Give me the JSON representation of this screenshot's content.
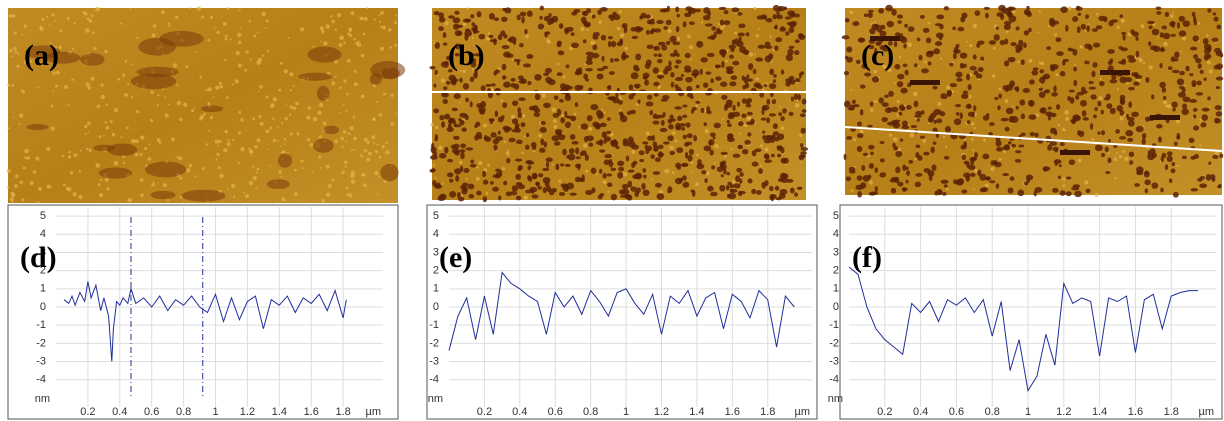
{
  "images": [
    {
      "label": "(a)"
    },
    {
      "label": "(b)"
    },
    {
      "label": "(c)"
    }
  ],
  "chart_data": [
    {
      "type": "line",
      "panel": "(d)",
      "xlabel": "µm",
      "ylabel": "nm",
      "color": "#1f2f9a",
      "grid": true,
      "xlim": [
        0,
        2.05
      ],
      "ylim": [
        -5.5,
        5.5
      ],
      "xticks": [
        0.2,
        0.4,
        0.6,
        0.8,
        1,
        1.2,
        1.4,
        1.6,
        1.8
      ],
      "yticks": [
        -4,
        -3,
        -2,
        -1,
        0,
        1,
        2,
        3,
        4,
        5
      ],
      "cursors": [
        0.47,
        0.92
      ],
      "x": [
        0.05,
        0.08,
        0.1,
        0.12,
        0.15,
        0.18,
        0.2,
        0.22,
        0.25,
        0.28,
        0.3,
        0.33,
        0.35,
        0.36,
        0.38,
        0.4,
        0.42,
        0.45,
        0.47,
        0.5,
        0.55,
        0.6,
        0.65,
        0.7,
        0.75,
        0.8,
        0.85,
        0.9,
        0.95,
        1.0,
        1.05,
        1.1,
        1.15,
        1.2,
        1.25,
        1.3,
        1.35,
        1.4,
        1.45,
        1.5,
        1.55,
        1.6,
        1.65,
        1.7,
        1.75,
        1.8,
        1.82
      ],
      "values": [
        0.4,
        0.2,
        0.6,
        0.1,
        0.8,
        0.3,
        1.4,
        0.5,
        1.2,
        -0.2,
        0.5,
        -0.5,
        -3.0,
        -1.2,
        0.3,
        0.1,
        0.5,
        0.2,
        1.0,
        0.2,
        0.5,
        0.0,
        0.6,
        -0.2,
        0.4,
        0.1,
        0.6,
        0.0,
        -0.3,
        0.7,
        -0.8,
        0.5,
        -0.7,
        0.3,
        0.6,
        -1.2,
        0.4,
        0.1,
        0.6,
        -0.3,
        0.5,
        0.2,
        0.7,
        -0.2,
        0.9,
        -0.6,
        0.4
      ]
    },
    {
      "type": "line",
      "panel": "(e)",
      "xlabel": "µm",
      "ylabel": "nm",
      "color": "#1f2f9a",
      "grid": true,
      "xlim": [
        0,
        2.05
      ],
      "ylim": [
        -5.5,
        5.5
      ],
      "xticks": [
        0.2,
        0.4,
        0.6,
        0.8,
        1,
        1.2,
        1.4,
        1.6,
        1.8
      ],
      "yticks": [
        -4,
        -3,
        -2,
        -1,
        0,
        1,
        2,
        3,
        4,
        5
      ],
      "x": [
        0,
        0.05,
        0.1,
        0.15,
        0.2,
        0.25,
        0.3,
        0.35,
        0.4,
        0.45,
        0.5,
        0.55,
        0.6,
        0.65,
        0.7,
        0.75,
        0.8,
        0.85,
        0.9,
        0.95,
        1.0,
        1.05,
        1.1,
        1.15,
        1.2,
        1.25,
        1.3,
        1.35,
        1.4,
        1.45,
        1.5,
        1.55,
        1.6,
        1.65,
        1.7,
        1.75,
        1.8,
        1.85,
        1.9,
        1.95
      ],
      "values": [
        -2.4,
        -0.5,
        0.5,
        -1.8,
        0.6,
        -1.5,
        1.9,
        1.3,
        1.0,
        0.6,
        0.3,
        -1.5,
        0.8,
        0.0,
        0.6,
        -0.4,
        0.9,
        0.3,
        -0.5,
        0.8,
        1.0,
        0.2,
        -0.4,
        0.7,
        -1.5,
        0.6,
        0.2,
        0.9,
        -0.5,
        0.5,
        0.8,
        -1.2,
        0.7,
        0.3,
        -0.6,
        0.9,
        0.4,
        -2.2,
        0.6,
        0.0
      ]
    },
    {
      "type": "line",
      "panel": "(f)",
      "xlabel": "µm",
      "ylabel": "nm",
      "color": "#1f2f9a",
      "grid": true,
      "xlim": [
        0,
        2.05
      ],
      "ylim": [
        -5.5,
        5.5
      ],
      "xticks": [
        0.2,
        0.4,
        0.6,
        0.8,
        1,
        1.2,
        1.4,
        1.6,
        1.8
      ],
      "yticks": [
        -4,
        -3,
        -2,
        -1,
        0,
        1,
        2,
        3,
        4,
        5
      ],
      "x": [
        0,
        0.05,
        0.1,
        0.15,
        0.2,
        0.25,
        0.3,
        0.35,
        0.4,
        0.45,
        0.5,
        0.55,
        0.6,
        0.65,
        0.7,
        0.75,
        0.8,
        0.85,
        0.9,
        0.95,
        1.0,
        1.05,
        1.1,
        1.15,
        1.2,
        1.25,
        1.3,
        1.35,
        1.4,
        1.45,
        1.5,
        1.55,
        1.6,
        1.65,
        1.7,
        1.75,
        1.8,
        1.85,
        1.9,
        1.95
      ],
      "values": [
        2.2,
        1.8,
        0.0,
        -1.2,
        -1.8,
        -2.2,
        -2.6,
        0.2,
        -0.3,
        0.3,
        -0.8,
        0.4,
        0.1,
        0.5,
        -0.3,
        0.4,
        -1.6,
        0.3,
        -3.5,
        -1.8,
        -4.6,
        -3.8,
        -1.5,
        -3.2,
        1.3,
        0.2,
        0.5,
        0.3,
        -2.7,
        0.5,
        0.3,
        0.6,
        -2.5,
        0.4,
        0.7,
        -1.2,
        0.6,
        0.8,
        0.9,
        0.9
      ]
    }
  ]
}
